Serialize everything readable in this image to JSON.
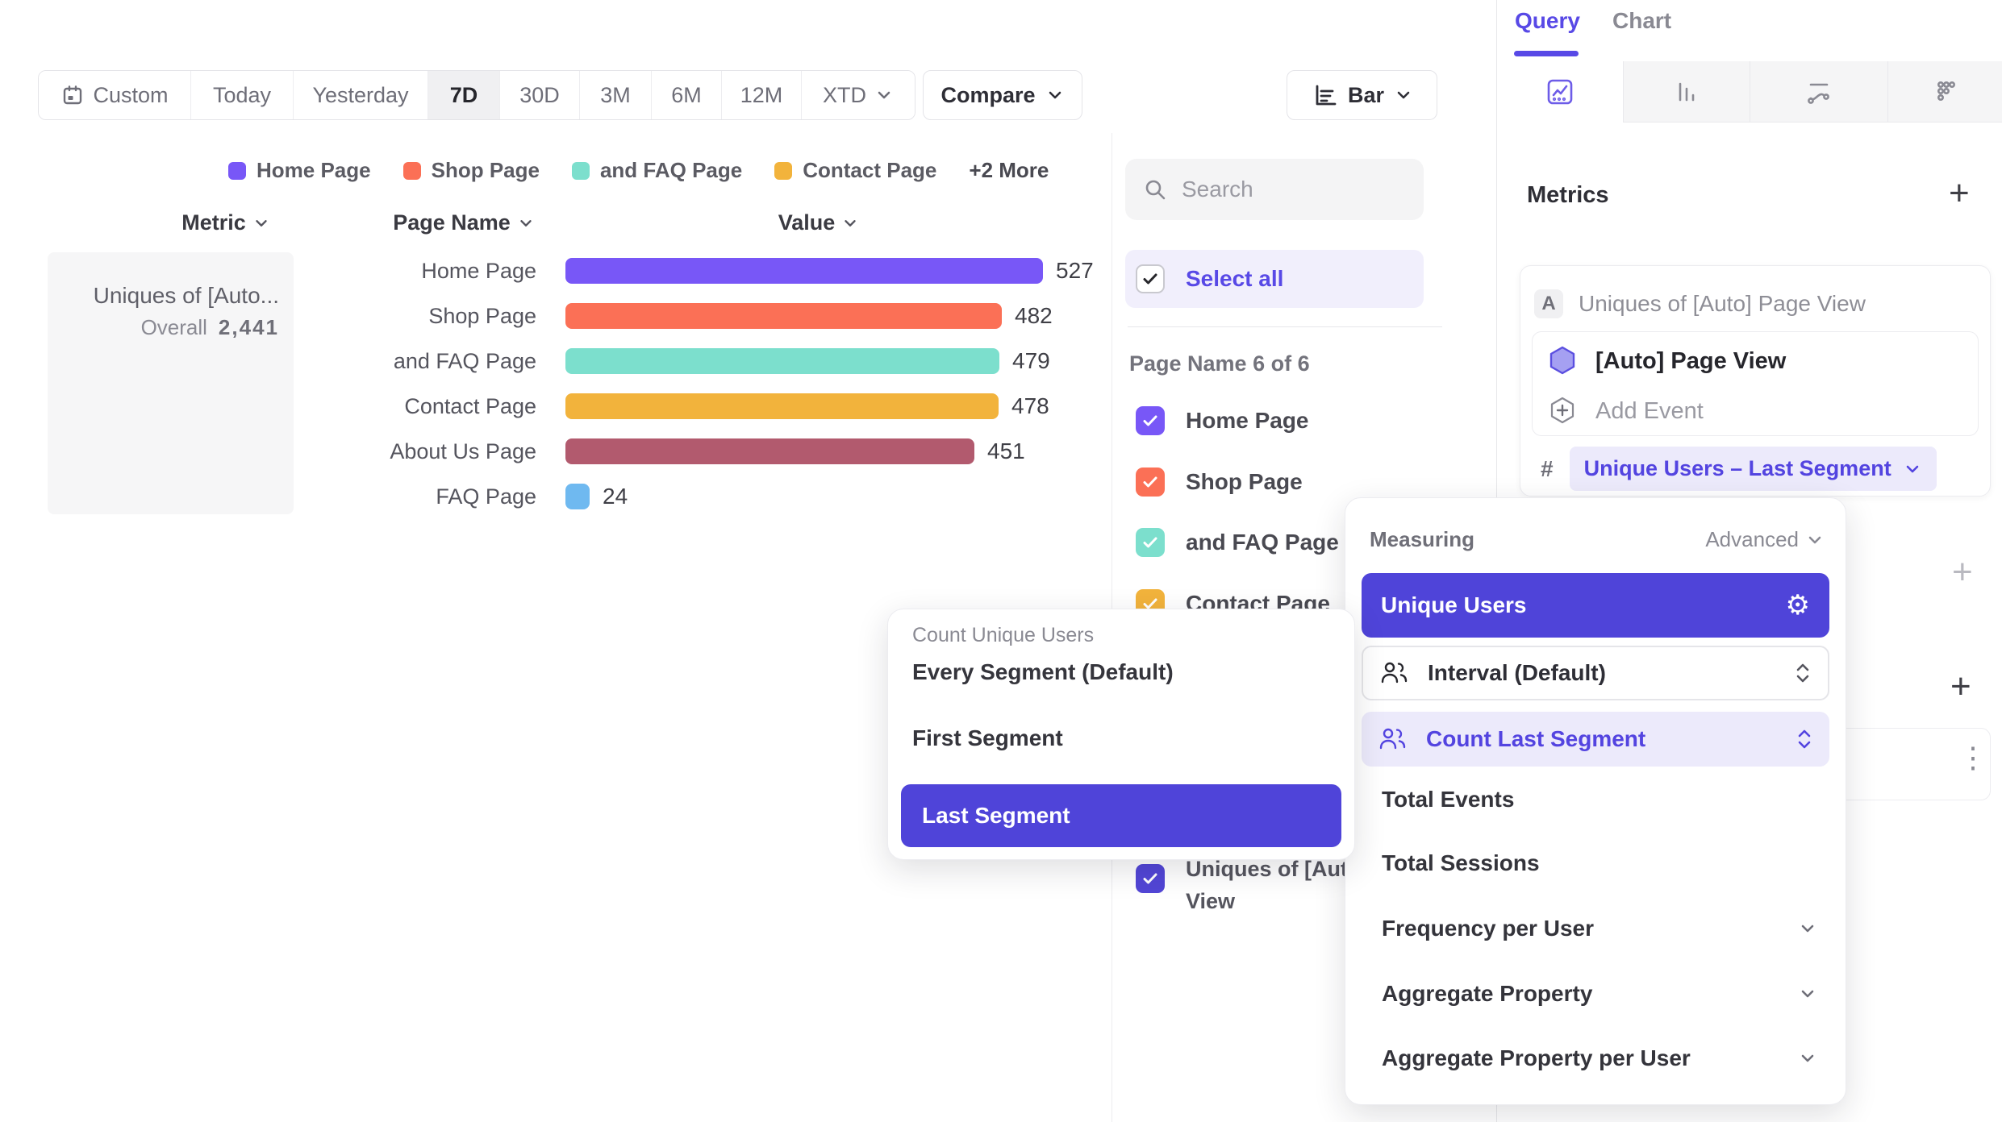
{
  "toolbar": {
    "date_ranges": [
      "Custom",
      "Today",
      "Yesterday",
      "7D",
      "30D",
      "3M",
      "6M",
      "12M",
      "XTD"
    ],
    "active_range": "7D",
    "compare_label": "Compare",
    "chart_type_label": "Bar"
  },
  "legend": {
    "items": [
      {
        "label": "Home Page",
        "color": "#7857f7"
      },
      {
        "label": "Shop Page",
        "color": "#fb7056"
      },
      {
        "label": "and FAQ Page",
        "color": "#7cdfcd"
      },
      {
        "label": "Contact Page",
        "color": "#f2b33c"
      }
    ],
    "more_label": "+2 More"
  },
  "table": {
    "headers": {
      "metric": "Metric",
      "page_name": "Page Name",
      "value": "Value"
    },
    "metric_card": {
      "title": "Uniques of [Auto...",
      "subtitle_label": "Overall",
      "subtitle_value": "2,441"
    }
  },
  "chart_data": {
    "type": "bar",
    "title": "Uniques of [Auto] Page View",
    "xlabel": "Value",
    "ylabel": "Page Name",
    "overall_total": 2441,
    "categories": [
      "Home Page",
      "Shop Page",
      "and FAQ Page",
      "Contact Page",
      "About Us Page",
      "FAQ Page"
    ],
    "values": [
      527,
      482,
      479,
      478,
      451,
      24
    ],
    "colors": [
      "#7857f7",
      "#fb7056",
      "#7cdfcd",
      "#f2b33c",
      "#b25a6e",
      "#6fb9f0"
    ],
    "legend_position": "top",
    "grid": false
  },
  "filter_panel": {
    "search_placeholder": "Search",
    "select_all_label": "Select all",
    "group_label": "Page Name 6 of 6",
    "items": [
      {
        "label": "Home Page",
        "color": "#7857f7",
        "checked": true
      },
      {
        "label": "Shop Page",
        "color": "#fb7056",
        "checked": true
      },
      {
        "label": "and FAQ Page",
        "color": "#7cdfcd",
        "checked": true
      },
      {
        "label": "Contact Page",
        "color": "#f2b33c",
        "checked": true
      }
    ],
    "metric_item": {
      "label": "Uniques of [Auto] Page View",
      "color": "#5246d6",
      "checked": true
    }
  },
  "count_popup": {
    "title": "Count Unique Users",
    "options": [
      "Every Segment (Default)",
      "First Segment",
      "Last Segment"
    ],
    "selected": "Last Segment"
  },
  "query_panel": {
    "tabs": [
      "Query",
      "Chart"
    ],
    "active_tab": "Query",
    "view_icons": [
      "insights",
      "bar-chart",
      "retention",
      "flows"
    ],
    "metrics_label": "Metrics",
    "metric": {
      "badge": "A",
      "title": "Uniques of [Auto] Page View",
      "event_name": "[Auto] Page View",
      "add_event_label": "Add Event",
      "aggregation_prefix": "#",
      "aggregation_label": "Unique Users – Last Segment"
    }
  },
  "measuring_popup": {
    "title": "Measuring",
    "advanced_label": "Advanced",
    "selected_label": "Unique Users",
    "interval_label": "Interval (Default)",
    "count_label": "Count Last Segment",
    "options": [
      {
        "label": "Total Events",
        "expandable": false
      },
      {
        "label": "Total Sessions",
        "expandable": false
      },
      {
        "label": "Frequency per User",
        "expandable": true
      },
      {
        "label": "Aggregate Property",
        "expandable": true
      },
      {
        "label": "Aggregate Property per User",
        "expandable": true
      }
    ]
  },
  "colors": {
    "accent_purple": "#5849e6",
    "selected_purple": "#4f44d9",
    "pill_bg": "#eceafb",
    "select_all_bg": "#f1effc"
  }
}
